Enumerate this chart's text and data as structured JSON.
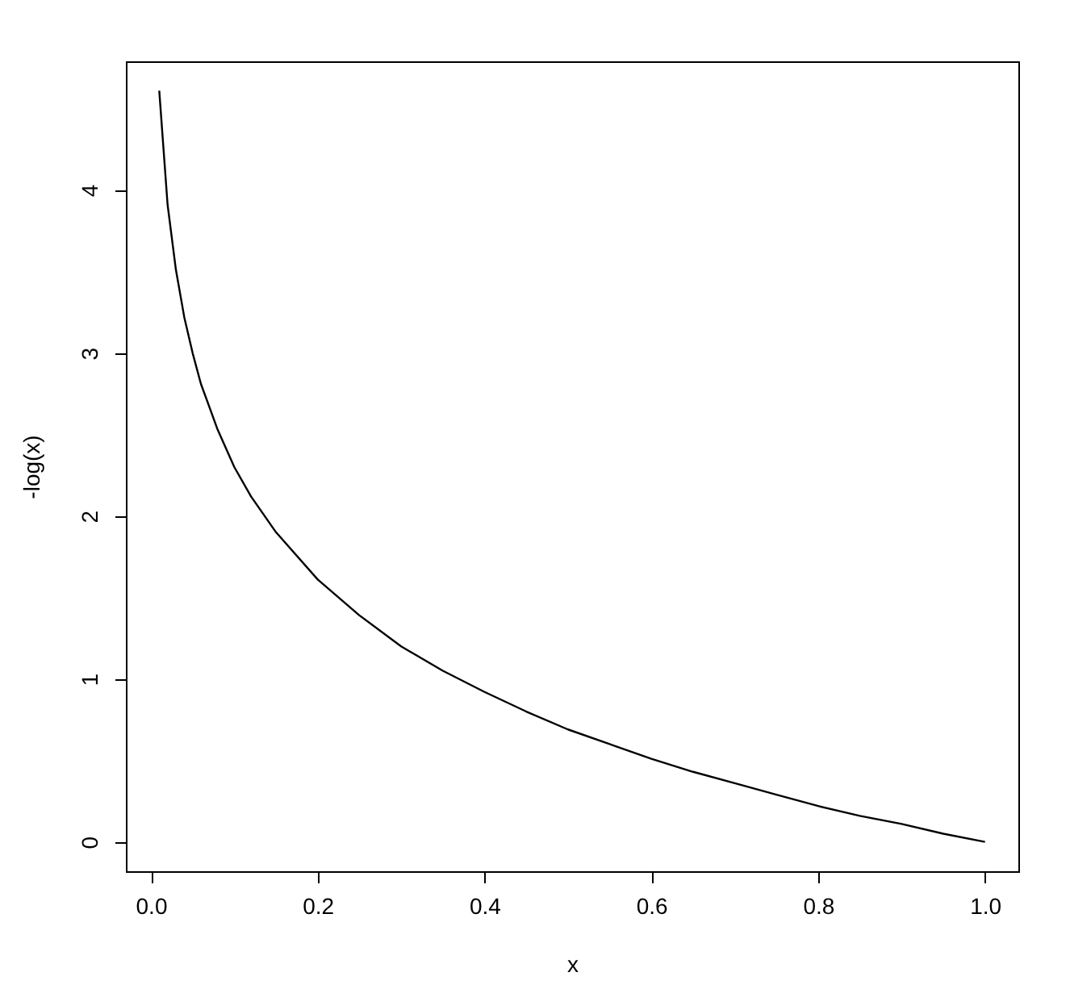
{
  "chart_data": {
    "type": "line",
    "xlabel": "x",
    "ylabel": "-log(x)",
    "x": [
      0.01,
      0.02,
      0.03,
      0.04,
      0.05,
      0.06,
      0.08,
      0.1,
      0.12,
      0.15,
      0.2,
      0.25,
      0.3,
      0.35,
      0.4,
      0.45,
      0.5,
      0.55,
      0.6,
      0.65,
      0.7,
      0.75,
      0.8,
      0.85,
      0.9,
      0.95,
      1.0
    ],
    "series": [
      {
        "color": "#000000",
        "values": [
          4.61,
          3.91,
          3.51,
          3.22,
          3.0,
          2.81,
          2.53,
          2.3,
          2.12,
          1.9,
          1.61,
          1.39,
          1.2,
          1.05,
          0.92,
          0.8,
          0.69,
          0.6,
          0.51,
          0.43,
          0.36,
          0.29,
          0.22,
          0.16,
          0.11,
          0.05,
          0.0
        ]
      }
    ],
    "xlim": [
      -0.03,
      1.04
    ],
    "ylim": [
      -0.18,
      4.79
    ],
    "xticks": [
      {
        "value": 0,
        "label": "0.0"
      },
      0.2,
      0.4,
      0.6,
      0.8,
      {
        "value": 1,
        "label": "1.0"
      }
    ],
    "yticks": [
      0,
      1,
      2,
      3,
      4
    ],
    "grid": false,
    "marker": "none",
    "line_style": "solid"
  }
}
